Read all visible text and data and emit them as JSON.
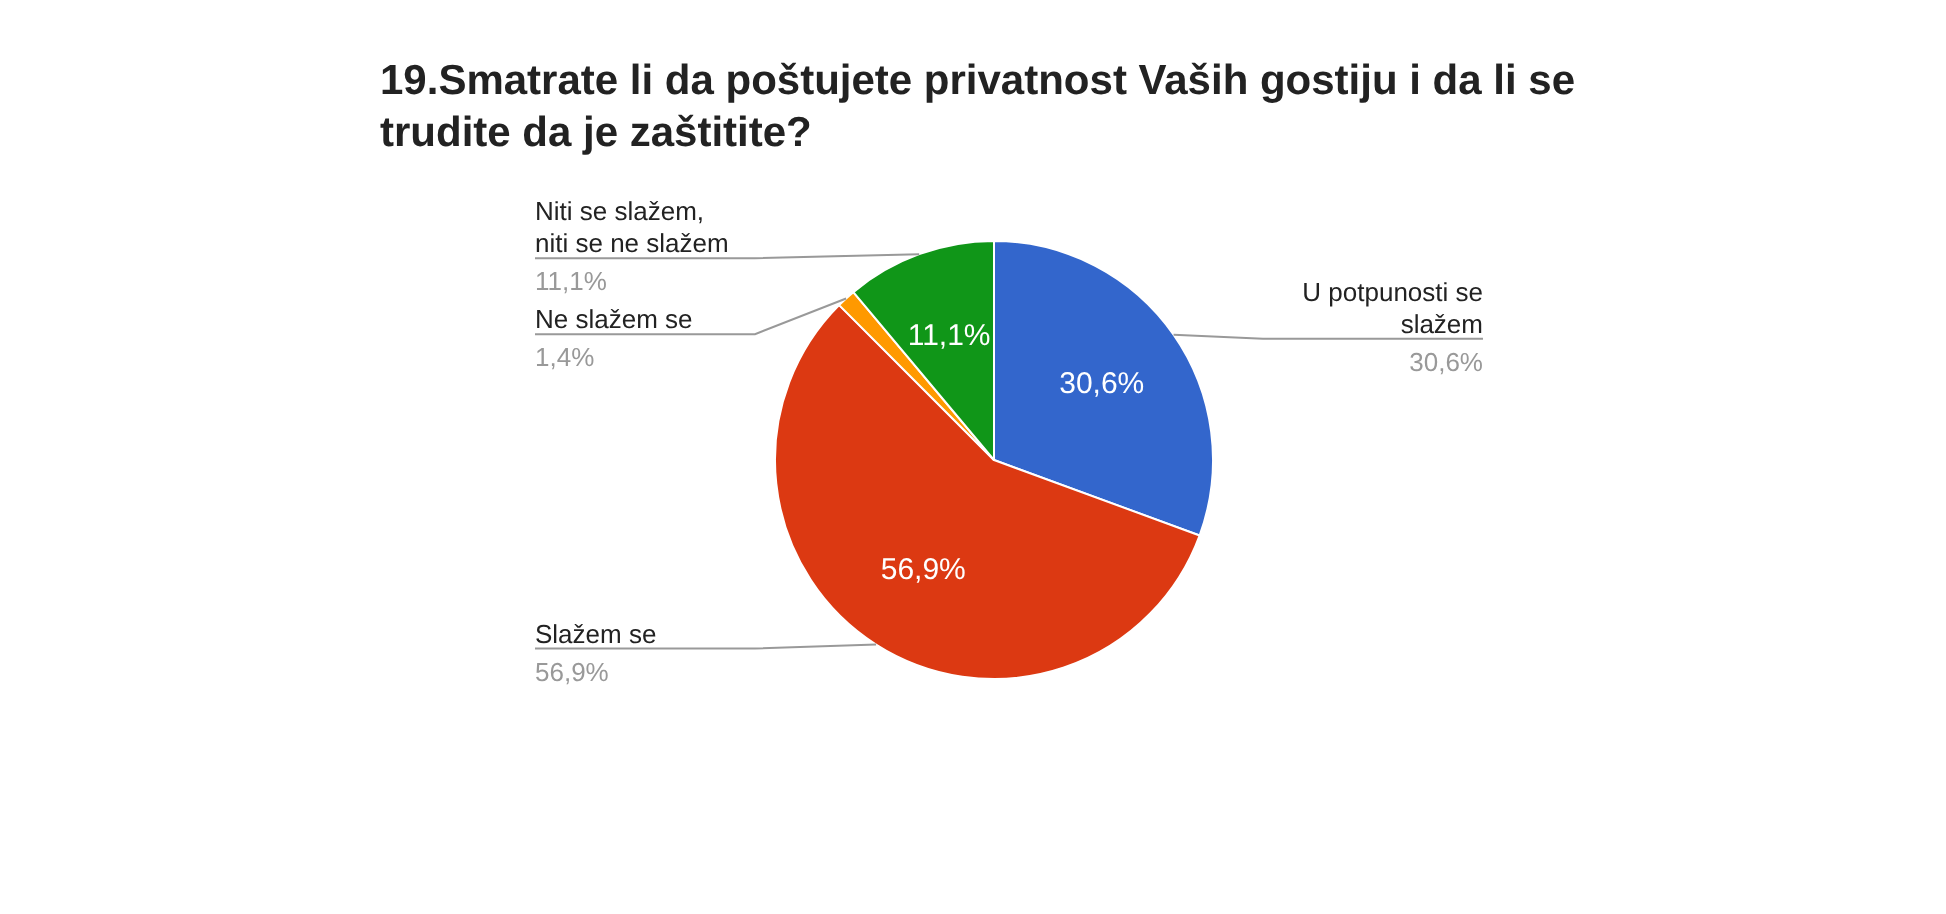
{
  "chart_data": {
    "type": "pie",
    "title": "19.Smatrate li da poštujete privatnost Vaših gostiju i da li se trudite da je zaštitite?",
    "categories": [
      "U potpunosti se slažem",
      "Slažem se",
      "Ne slažem se",
      "Niti se slažem, niti se ne slažem"
    ],
    "values": [
      30.6,
      56.9,
      1.4,
      11.1
    ],
    "colors": [
      "#3366cc",
      "#dc3912",
      "#ff9900",
      "#109618"
    ],
    "value_labels": [
      "30,6%",
      "56,9%",
      "1,4%",
      "11,1%"
    ],
    "legend": false
  }
}
